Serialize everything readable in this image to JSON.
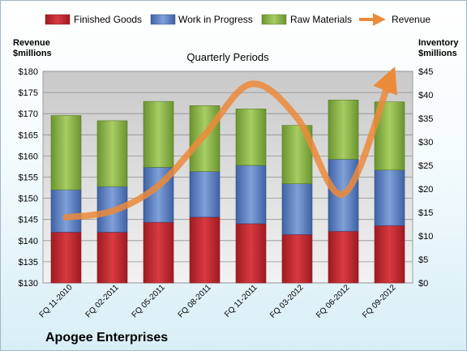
{
  "chart_data": {
    "type": "bar",
    "subtitle": "Quarterly Periods",
    "company": "Apogee Enterprises",
    "categories": [
      "FQ 11-2010",
      "FQ 02-2011",
      "FQ 05-2011",
      "FQ 08-2011",
      "FQ 11-2011",
      "FQ 03-2012",
      "FQ 06-2012",
      "FQ 09-2012"
    ],
    "stacked_series": [
      {
        "name": "Finished Goods",
        "color": "#c0262d",
        "values": [
          10.8,
          10.8,
          12.9,
          14.0,
          12.6,
          10.3,
          11.0,
          12.2
        ]
      },
      {
        "name": "Work in Progress",
        "color": "#5b7fc0",
        "values": [
          9.0,
          9.7,
          11.7,
          9.7,
          12.4,
          10.8,
          15.3,
          11.8
        ]
      },
      {
        "name": "Raw Materials",
        "color": "#8ab446",
        "values": [
          15.8,
          14.0,
          14.0,
          14.0,
          12.0,
          12.4,
          12.6,
          14.5
        ]
      }
    ],
    "line_series": {
      "name": "Revenue",
      "color": "#ec8a3a",
      "values": [
        145.5,
        147,
        153,
        165,
        177,
        169,
        151,
        178
      ]
    },
    "left_axis": {
      "title_line1": "Revenue",
      "title_line2": "$millions",
      "min": 130,
      "max": 180,
      "step": 5,
      "prefix": "$"
    },
    "right_axis": {
      "title_line1": "Inventory",
      "title_line2": "$millions",
      "min": 0,
      "max": 45,
      "step": 5,
      "prefix": "$"
    },
    "legend_position": "top",
    "grid": true
  }
}
